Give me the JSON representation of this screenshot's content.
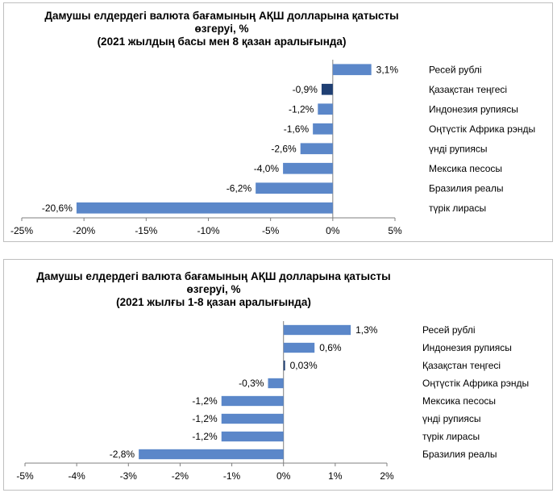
{
  "chart_data": [
    {
      "type": "bar",
      "orientation": "horizontal",
      "title": "Дамушы елдердегі валюта бағамының АҚШ долларына қатысты өзгеруі, %",
      "title_lines": [
        "Дамушы елдердегі валюта бағамының АҚШ долларына қатысты",
        "өзгеруі, %",
        "(2021 жылдың басы мен 8 қазан аралығында)"
      ],
      "subtitle": "(2021 жылдың басы мен 8 қазан аралығында)",
      "categories": [
        "Ресей рублі",
        "Қазақстан теңгесі",
        "Индонезия рупиясы",
        "Оңтүстік Африка рэнды",
        "үнді рупиясы",
        "Мексика песосы",
        "Бразилия реалы",
        "түрік лирасы"
      ],
      "values": [
        3.1,
        -0.9,
        -1.2,
        -1.6,
        -2.6,
        -4.0,
        -6.2,
        -20.6
      ],
      "value_labels": [
        "3,1%",
        "-0,9%",
        "-1,2%",
        "-1,6%",
        "-2,6%",
        "-4,0%",
        "-6,2%",
        "-20,6%"
      ],
      "highlight": "Қазақстан теңгесі",
      "xlim": [
        -25,
        5
      ],
      "xticks": [
        -25,
        -20,
        -15,
        -10,
        -5,
        0,
        5
      ],
      "xtick_labels": [
        "-25%",
        "-20%",
        "-15%",
        "-10%",
        "-5%",
        "0%",
        "5%"
      ],
      "xlabel": "",
      "ylabel": "",
      "grid": false,
      "legend": "none"
    },
    {
      "type": "bar",
      "orientation": "horizontal",
      "title": "Дамушы елдердегі валюта бағамының АҚШ долларына қатысты өзгеруі, %",
      "title_lines": [
        "Дамушы елдердегі валюта бағамының АҚШ долларына қатысты",
        "өзгеруі, %",
        "(2021 жылғы 1-8 қазан аралығында)"
      ],
      "subtitle": "(2021 жылғы 1-8 қазан аралығында)",
      "categories": [
        "Ресей рублі",
        "Индонезия рупиясы",
        "Қазақстан теңгесі",
        "Оңтүстік Африка рэнды",
        "Мексика песосы",
        "үнді рупиясы",
        "түрік лирасы",
        "Бразилия реалы"
      ],
      "values": [
        1.3,
        0.6,
        0.03,
        -0.3,
        -1.2,
        -1.2,
        -1.2,
        -2.8
      ],
      "value_labels": [
        "1,3%",
        "0,6%",
        "0,03%",
        "-0,3%",
        "-1,2%",
        "-1,2%",
        "-1,2%",
        "-2,8%"
      ],
      "highlight": "Қазақстан теңгесі",
      "xlim": [
        -5,
        2
      ],
      "xticks": [
        -5,
        -4,
        -3,
        -2,
        -1,
        0,
        1,
        2
      ],
      "xtick_labels": [
        "-5%",
        "-4%",
        "-3%",
        "-2%",
        "-1%",
        "0%",
        "1%",
        "2%"
      ],
      "xlabel": "",
      "ylabel": "",
      "grid": false,
      "legend": "none"
    }
  ],
  "colors": {
    "bar": "#5b87c9",
    "highlight": "#1f3f73",
    "axis": "#7f7f7f"
  }
}
